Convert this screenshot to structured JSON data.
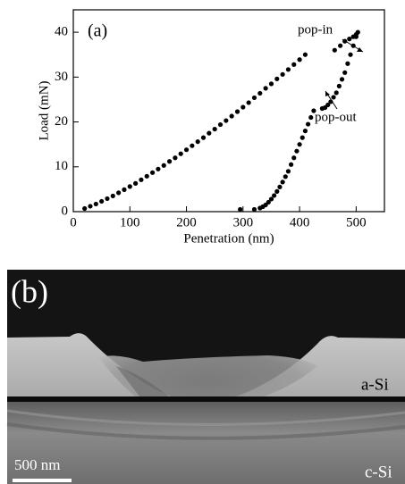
{
  "chart_data": {
    "type": "scatter",
    "panel_label": "(a)",
    "x_label": "Penetration (nm)",
    "y_label": "Load (mN)",
    "annotations": [
      "pop-in",
      "pop-out"
    ],
    "color": "#000000",
    "xlim": [
      0,
      550
    ],
    "xticks": [
      0,
      100,
      200,
      300,
      400,
      500
    ],
    "ylim": [
      0,
      45
    ],
    "yticks": [
      0,
      10,
      20,
      30,
      40
    ],
    "x": [
      20,
      30,
      40,
      50,
      60,
      70,
      80,
      90,
      100,
      110,
      120,
      130,
      140,
      150,
      160,
      170,
      180,
      190,
      200,
      210,
      220,
      230,
      240,
      250,
      260,
      270,
      280,
      290,
      300,
      310,
      320,
      330,
      340,
      350,
      360,
      370,
      380,
      390,
      400,
      410,
      462,
      472,
      480,
      488,
      495,
      500,
      503,
      500,
      495,
      490,
      485,
      480,
      475,
      470,
      465,
      460,
      455,
      450,
      445,
      440,
      425,
      420,
      415,
      410,
      405,
      400,
      395,
      390,
      385,
      380,
      375,
      370,
      365,
      360,
      355,
      350,
      345,
      340,
      335,
      330,
      320,
      295
    ],
    "values": [
      0.7,
      1.2,
      1.7,
      2.3,
      2.9,
      3.5,
      4.2,
      4.9,
      5.6,
      6.3,
      7.1,
      7.9,
      8.7,
      9.5,
      10.3,
      11.2,
      12.0,
      12.9,
      13.8,
      14.7,
      15.6,
      16.5,
      17.5,
      18.4,
      19.4,
      20.3,
      21.3,
      22.3,
      23.3,
      24.3,
      25.4,
      26.4,
      27.5,
      28.5,
      29.6,
      30.6,
      31.7,
      32.8,
      33.9,
      35.0,
      36,
      37,
      38,
      38.5,
      39,
      39.5,
      40,
      39,
      37,
      35,
      33,
      31,
      29.5,
      28,
      26.5,
      25.5,
      24.5,
      23.8,
      23.2,
      23,
      22.5,
      21,
      19.5,
      18,
      16.5,
      15,
      13.5,
      12,
      10.5,
      9,
      7.8,
      6.6,
      5.5,
      4.5,
      3.6,
      2.8,
      2.1,
      1.5,
      1.1,
      0.8,
      0.5,
      0.5
    ]
  },
  "image_panel": {
    "panel_label": "(b)",
    "layer_labels": [
      "a-Si",
      "c-Si"
    ],
    "scale_bar": "500 nm"
  }
}
